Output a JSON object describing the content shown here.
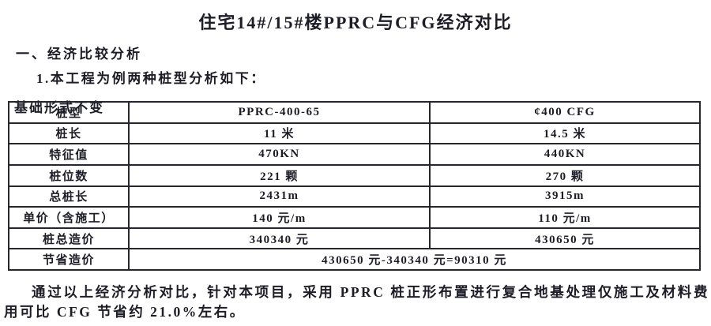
{
  "page": {
    "title": "住宅14#/15#楼PPRC与CFG经济对比",
    "section_heading": "一、经济比较分析",
    "subsection": "1.本工程为例两种桩型分析如下：",
    "table_caption": "基础形式不变",
    "conclusion": "通过以上经济分析对比，针对本项目，采用 PPRC 桩正形布置进行复合地基处理仅施工及材料费用可比 CFG 节省约 21.0%左右。"
  },
  "table": {
    "rows": [
      {
        "label": "桩型",
        "pprc": "PPRC-400-65",
        "cfg": "¢400 CFG"
      },
      {
        "label": "桩长",
        "pprc": "11 米",
        "cfg": "14.5 米"
      },
      {
        "label": "特征值",
        "pprc": "470KN",
        "cfg": "440KN"
      },
      {
        "label": "桩位数",
        "pprc": "221 颗",
        "cfg": "270 颗"
      },
      {
        "label": "总桩长",
        "pprc": "2431m",
        "cfg": "3915m"
      },
      {
        "label": "单价（含施工）",
        "pprc": "140 元/m",
        "cfg": "110 元/m"
      },
      {
        "label": "桩总造价",
        "pprc": "340340 元",
        "cfg": "430650 元"
      },
      {
        "label": "节省造价",
        "merged": "430650 元-340340 元=90310 元"
      }
    ]
  },
  "colors": {
    "text": "#1d1d27",
    "border": "#26262e",
    "background": "#ffffff"
  }
}
